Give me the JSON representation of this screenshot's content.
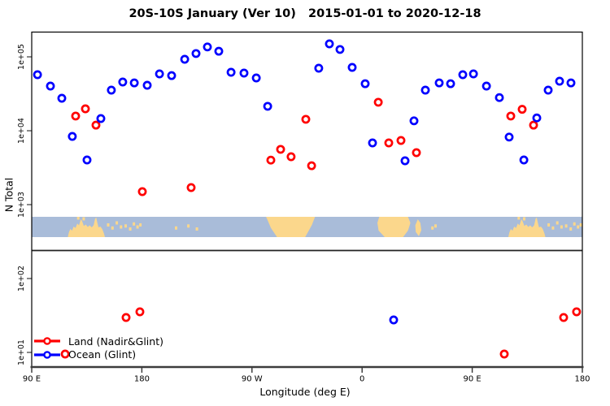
{
  "chart_data": {
    "type": "scatter",
    "title": "20S-10S January (Ver 10)   2015-01-01 to 2020-12-18",
    "xlabel": "Longitude (deg E)",
    "ylabel": "N Total",
    "x_axis": {
      "range_deg": [
        90,
        540
      ],
      "tick_positions_deg": [
        90,
        180,
        270,
        360,
        450,
        540
      ],
      "tick_labels": [
        "90 E",
        "180",
        "90 W",
        "0",
        "90 E",
        "180"
      ],
      "note": "longitude wraps eastward over 450 degrees"
    },
    "y_axis": {
      "scale": "log10",
      "range": [
        6.3,
        220000
      ],
      "tick_values": [
        100000,
        10000,
        1000,
        100,
        10
      ],
      "tick_labels": [
        "1e+05",
        "1e+04",
        "1e+03",
        "1e+02",
        "1e+01"
      ]
    },
    "grid": false,
    "legend_position": "bottom-left",
    "series": [
      {
        "name": "Land (Nadir&Glint)",
        "color": "#FF0000",
        "marker": "open-circle",
        "points": [
          [
            125.9,
            15800
          ],
          [
            133.9,
            19800
          ],
          [
            142.5,
            11900
          ],
          [
            180.4,
            1500
          ],
          [
            220.3,
            1700
          ],
          [
            285.4,
            4000
          ],
          [
            293.4,
            5600
          ],
          [
            302.0,
            4450
          ],
          [
            314.0,
            14300
          ],
          [
            318.7,
            3360
          ],
          [
            373.2,
            24300
          ],
          [
            381.8,
            6840
          ],
          [
            391.8,
            7380
          ],
          [
            404.4,
            5050
          ],
          [
            481.5,
            15800
          ],
          [
            490.8,
            19500
          ],
          [
            500.1,
            11900
          ],
          [
            117.3,
            9.5
          ],
          [
            167.1,
            29.7
          ],
          [
            178.4,
            35.4
          ],
          [
            476.2,
            9.5
          ],
          [
            524.7,
            29.7
          ],
          [
            535.3,
            35.4
          ]
        ]
      },
      {
        "name": "Ocean (Glint)",
        "color": "#0000FF",
        "marker": "open-circle",
        "points": [
          [
            94.7,
            57300
          ],
          [
            105.3,
            40200
          ],
          [
            114.6,
            27500
          ],
          [
            123.2,
            8380
          ],
          [
            135.2,
            4020
          ],
          [
            146.5,
            14600
          ],
          [
            155.1,
            35400
          ],
          [
            164.4,
            45600
          ],
          [
            173.8,
            44400
          ],
          [
            184.4,
            41200
          ],
          [
            194.4,
            58800
          ],
          [
            204.3,
            55800
          ],
          [
            215.0,
            92700
          ],
          [
            224.3,
            111000
          ],
          [
            233.6,
            136000
          ],
          [
            242.9,
            119000
          ],
          [
            252.9,
            61800
          ],
          [
            263.5,
            60300
          ],
          [
            273.5,
            51800
          ],
          [
            282.8,
            21400
          ],
          [
            324.6,
            70100
          ],
          [
            333.3,
            150000
          ],
          [
            341.9,
            126000
          ],
          [
            351.9,
            71900
          ],
          [
            362.5,
            43300
          ],
          [
            368.5,
            6840
          ],
          [
            385.8,
            27.5
          ],
          [
            395.1,
            3920
          ],
          [
            402.4,
            13600
          ],
          [
            411.7,
            35400
          ],
          [
            423.0,
            44400
          ],
          [
            432.3,
            43300
          ],
          [
            442.3,
            57300
          ],
          [
            451.0,
            58800
          ],
          [
            461.6,
            40200
          ],
          [
            472.2,
            28100
          ],
          [
            480.2,
            8200
          ],
          [
            492.2,
            4020
          ],
          [
            502.8,
            14900
          ],
          [
            512.1,
            35400
          ],
          [
            521.4,
            46800
          ],
          [
            530.7,
            44400
          ]
        ]
      }
    ],
    "map_strip": {
      "description": "20S-10S latitude land/ocean band",
      "ocean_color": "#A9BCD9",
      "land_color": "#FBD78C",
      "repeat_offset_deg": 360,
      "land_polygons": [
        {
          "name": "australia-newguinea",
          "points": [
            [
              119.5,
              1
            ],
            [
              120.3,
              0.78
            ],
            [
              121.5,
              0.6
            ],
            [
              123,
              0.68
            ],
            [
              124.3,
              0.48
            ],
            [
              125.8,
              0.55
            ],
            [
              127.2,
              0.33
            ],
            [
              128.6,
              0.42
            ],
            [
              130.2,
              0.12
            ],
            [
              131.2,
              0.22
            ],
            [
              132.6,
              0.45
            ],
            [
              134.2,
              0.38
            ],
            [
              135.8,
              0.5
            ],
            [
              137.4,
              0.42
            ],
            [
              139,
              0.52
            ],
            [
              140.6,
              0.42
            ],
            [
              141.8,
              0.1
            ],
            [
              142.7,
              0.03
            ],
            [
              143.6,
              0.28
            ],
            [
              144.6,
              0.52
            ],
            [
              146.2,
              0.48
            ],
            [
              147.6,
              0.6
            ],
            [
              149,
              0.82
            ],
            [
              149.8,
              1
            ]
          ]
        },
        {
          "name": "south-america",
          "points": [
            [
              281.5,
              0
            ],
            [
              321.5,
              0
            ],
            [
              319,
              0.4
            ],
            [
              313.5,
              1
            ],
            [
              290.5,
              1
            ],
            [
              285.5,
              0.55
            ],
            [
              283,
              0.2
            ]
          ]
        },
        {
          "name": "africa",
          "points": [
            [
              374,
              0
            ],
            [
              397.5,
              0
            ],
            [
              399.5,
              0.3
            ],
            [
              397.5,
              0.68
            ],
            [
              393.5,
              1
            ],
            [
              378.5,
              1
            ],
            [
              373.5,
              0.68
            ],
            [
              372.5,
              0.3
            ]
          ]
        },
        {
          "name": "madagascar",
          "points": [
            [
              403.5,
              0.42
            ],
            [
              405.5,
              0.12
            ],
            [
              407.6,
              0.3
            ],
            [
              408.4,
              0.66
            ],
            [
              406.4,
              0.95
            ],
            [
              403.9,
              0.75
            ]
          ]
        }
      ],
      "island_specks": [
        {
          "deg": 128.0,
          "t": 0.06
        },
        {
          "deg": 132.5,
          "t": 0.1
        },
        {
          "deg": 152.5,
          "t": 0.4
        },
        {
          "deg": 156.0,
          "t": 0.55
        },
        {
          "deg": 159.5,
          "t": 0.3
        },
        {
          "deg": 163.0,
          "t": 0.5
        },
        {
          "deg": 166.8,
          "t": 0.45
        },
        {
          "deg": 170.5,
          "t": 0.6
        },
        {
          "deg": 173.5,
          "t": 0.35
        },
        {
          "deg": 176.5,
          "t": 0.5
        },
        {
          "deg": 178.8,
          "t": 0.4
        },
        {
          "deg": 208.0,
          "t": 0.55
        },
        {
          "deg": 218.0,
          "t": 0.45
        },
        {
          "deg": 225.0,
          "t": 0.6
        },
        {
          "deg": 417.5,
          "t": 0.55
        },
        {
          "deg": 420.0,
          "t": 0.45
        }
      ]
    }
  }
}
